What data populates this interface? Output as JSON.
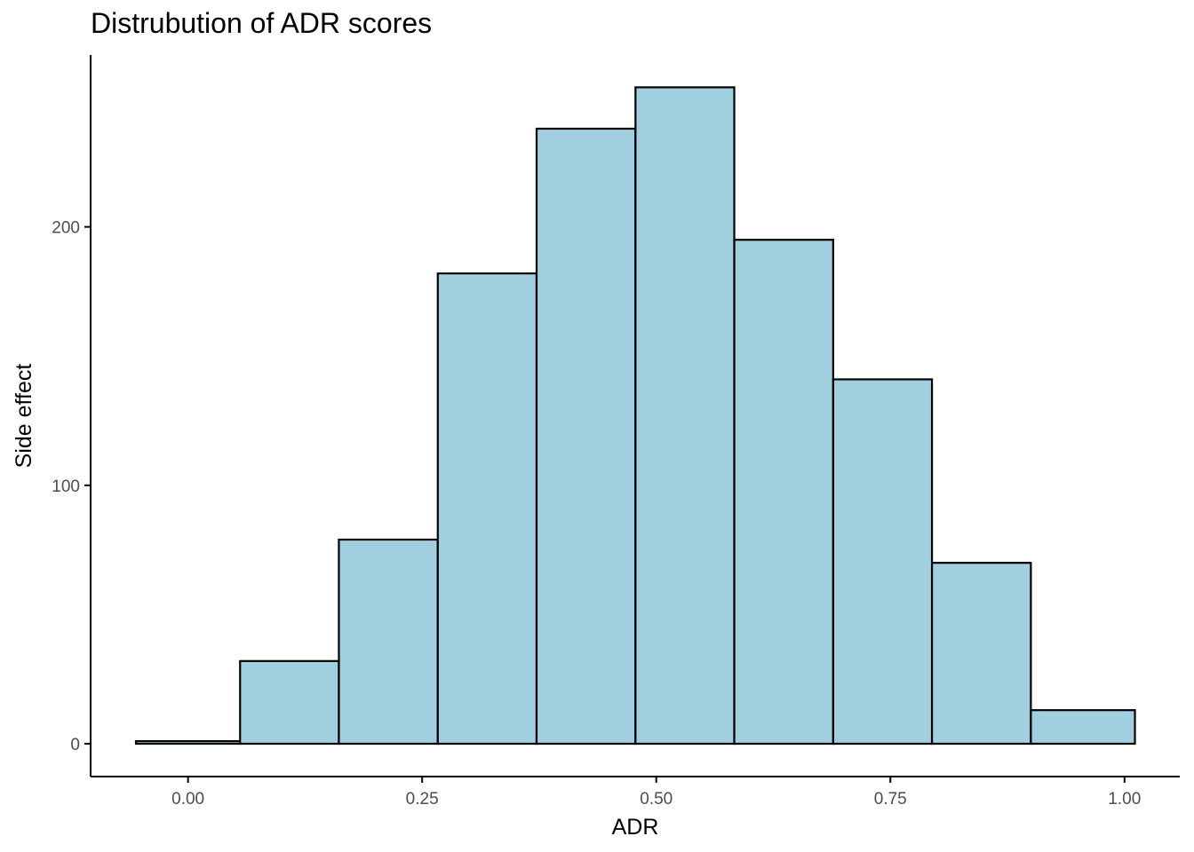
{
  "chart_data": {
    "type": "bar",
    "title": "Distrubution of ADR scores",
    "xlabel": "ADR",
    "ylabel": "Side effect",
    "bins": [
      {
        "x0": -0.0556,
        "x1": 0.0556,
        "count": 1
      },
      {
        "x0": 0.0556,
        "x1": 0.1611,
        "count": 32
      },
      {
        "x0": 0.1611,
        "x1": 0.2667,
        "count": 79
      },
      {
        "x0": 0.2667,
        "x1": 0.3722,
        "count": 182
      },
      {
        "x0": 0.3722,
        "x1": 0.4778,
        "count": 238
      },
      {
        "x0": 0.4778,
        "x1": 0.5833,
        "count": 254
      },
      {
        "x0": 0.5833,
        "x1": 0.6889,
        "count": 195
      },
      {
        "x0": 0.6889,
        "x1": 0.7944,
        "count": 141
      },
      {
        "x0": 0.7944,
        "x1": 0.9,
        "count": 70
      },
      {
        "x0": 0.9,
        "x1": 1.0111,
        "count": 13
      }
    ],
    "xlim": [
      -0.104,
      1.059
    ],
    "ylim": [
      -12.7,
      266.5
    ],
    "x_ticks": [
      0.0,
      0.25,
      0.5,
      0.75,
      1.0
    ],
    "x_tick_labels": [
      "0.00",
      "0.25",
      "0.50",
      "0.75",
      "1.00"
    ],
    "y_ticks": [
      0,
      100,
      200
    ],
    "y_tick_labels": [
      "0",
      "100",
      "200"
    ],
    "grid": false,
    "bar_fill": "#a1cfe0",
    "bar_stroke": "#000000"
  }
}
